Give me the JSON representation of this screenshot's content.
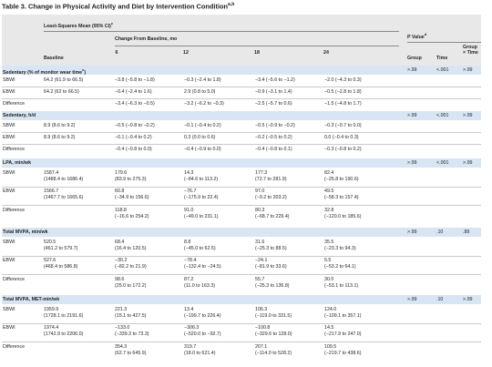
{
  "title": "Table 3. Change in Physical Activity and Diet by Intervention Condition",
  "title_sup": "a,b",
  "header": {
    "group_main": "Least-Squares Mean (95% CI)",
    "group_main_sup": "c",
    "group_sub": "Change From Baseline, mo",
    "pvalue": "P Value",
    "pvalue_sup": "d",
    "col_baseline": "Baseline",
    "col_6": "6",
    "col_12": "12",
    "col_18": "18",
    "col_24": "24",
    "col_group": "Group",
    "col_time": "Time",
    "col_gxt_1": "Group",
    "col_gxt_2": "× Time"
  },
  "sections": [
    {
      "title": "Sedentary (% of monitor wear time",
      "title_sup": "e",
      "title_tail": ")",
      "p": {
        "group": ">.99",
        "time": "<.001",
        "gxt": ">.99"
      },
      "rows": [
        {
          "label": "SBWI",
          "baseline": [
            "64.2 (61.9 to 66.5)"
          ],
          "m6": [
            "−3.8 (−5.8 to −1.8)"
          ],
          "m12": [
            "−0.3 (−2.4 to 1.8)"
          ],
          "m18": [
            "−3.4 (−5.6 to −1.2)"
          ],
          "m24": [
            "−2.0 (−4.3 to 0.3)"
          ]
        },
        {
          "label": "EBWI",
          "baseline": [
            "64.2 (62 to 66.5)"
          ],
          "m6": [
            "−0.4 (−2.4 to 1.6)"
          ],
          "m12": [
            "2.9 (0.8 to 5.0)"
          ],
          "m18": [
            "−0.9 (−3.1 to 1.4)"
          ],
          "m24": [
            "−0.5 (−2.8 to 1.8)"
          ]
        },
        {
          "label": "Difference",
          "baseline": [
            ""
          ],
          "m6": [
            "−3.4 (−6.3 to −0.5)"
          ],
          "m12": [
            "−3.2 (−6.2 to −0.3)"
          ],
          "m18": [
            "−2.5 (−5.7 to 0.6)"
          ],
          "m24": [
            "−1.5 (−4.8 to 1.7)"
          ]
        }
      ]
    },
    {
      "title": "Sedentary, h/d",
      "title_sup": "",
      "title_tail": "",
      "p": {
        "group": ">.99",
        "time": "<.001",
        "gxt": ">.99"
      },
      "rows": [
        {
          "label": "SBWI",
          "baseline": [
            "8.9 (8.6 to 9.2)"
          ],
          "m6": [
            "−0.5 (−0.8 to −0.2)"
          ],
          "m12": [
            "−0.1 (−0.4 to 0.2)"
          ],
          "m18": [
            "−0.5 (−0.9 to −0.2)"
          ],
          "m24": [
            "−0.3 (−0.7 to 0.0)"
          ]
        },
        {
          "label": "EBWI",
          "baseline": [
            "8.9 (8.6 to 9.2)"
          ],
          "m6": [
            "−0.1 (−0.4 to 0.2)"
          ],
          "m12": [
            "0.3 (0.0 to 0.6)"
          ],
          "m18": [
            "−0.2 (−0.5 to 0.2)"
          ],
          "m24": [
            "0.0 (−0.4 to 0.3)"
          ]
        },
        {
          "label": "Difference",
          "baseline": [
            ""
          ],
          "m6": [
            "−0.4 (−0.8 to 0.0)"
          ],
          "m12": [
            "−0.4 (−0.9 to 0.0)"
          ],
          "m18": [
            "−0.4 (−0.8 to 0.1)"
          ],
          "m24": [
            "−0.3 (−0.8 to 0.2)"
          ]
        }
      ]
    },
    {
      "title": "LPA, min/wk",
      "title_sup": "",
      "title_tail": "",
      "p": {
        "group": ">.99",
        "time": "<.001",
        "gxt": ">.99"
      },
      "rows": [
        {
          "label": "SBWI",
          "baseline": [
            "1587.4",
            "(1488.4 to 1686.4)"
          ],
          "m6": [
            "179.6",
            "(83.9 to 275.3)"
          ],
          "m12": [
            "14.3",
            "(−84.6 to 113.2)"
          ],
          "m18": [
            "177.3",
            "(72.7 to 281.9)"
          ],
          "m24": [
            "82.4",
            "(−25.8 to 190.6)"
          ]
        },
        {
          "label": "EBWI",
          "baseline": [
            "1566.7",
            "(1467.7 to 1665.6)"
          ],
          "m6": [
            "60.8",
            "(−34.9 to 156.6)"
          ],
          "m12": [
            "−76.7",
            "(−175.9 to 22.4)"
          ],
          "m18": [
            "97.0",
            "(−9.2 to 203.2)"
          ],
          "m24": [
            "49.5",
            "(−58.3 to 157.4)"
          ]
        },
        {
          "label": "Difference",
          "baseline": [
            "",
            ""
          ],
          "m6": [
            "118.8",
            "(−16.6 to 254.2)"
          ],
          "m12": [
            "91.0",
            "(−49.0 to 231.1)"
          ],
          "m18": [
            "80.3",
            "(−68.7 to 229.4)"
          ],
          "m24": [
            "32.8",
            "(−120.0 to 185.6)"
          ]
        }
      ]
    },
    {
      "title": "Total MVPA, min/wk",
      "title_sup": "",
      "title_tail": "",
      "p": {
        "group": ">.99",
        "time": ".10",
        "gxt": ".89"
      },
      "rows": [
        {
          "label": "SBWI",
          "baseline": [
            "520.5",
            "(461.2 to 579.7)"
          ],
          "m6": [
            "68.4",
            "(16.4 to 120.5)"
          ],
          "m12": [
            "8.8",
            "(−45.0 to 62.5)"
          ],
          "m18": [
            "31.6",
            "(−25.3 to 88.5)"
          ],
          "m24": [
            "35.5",
            "(−23.3 to 94.3)"
          ]
        },
        {
          "label": "EBWI",
          "baseline": [
            "527.6",
            "(468.4 to 586.8)"
          ],
          "m6": [
            "−30.2",
            "(−82.2 to 21.9)"
          ],
          "m12": [
            "−78.4",
            "(−132.4 to −24.5)"
          ],
          "m18": [
            "−24.1",
            "(−81.9 to 33.6)"
          ],
          "m24": [
            "5.5",
            "(−53.2 to 64.1)"
          ]
        },
        {
          "label": "Difference",
          "baseline": [
            "",
            ""
          ],
          "m6": [
            "98.6",
            "(25.0 to 172.2)"
          ],
          "m12": [
            "87.2",
            "(11.0 to 163.3)"
          ],
          "m18": [
            "55.7",
            "(−25.3 to 136.8)"
          ],
          "m24": [
            "30.0",
            "(−53.1 to 113.1)"
          ]
        }
      ]
    },
    {
      "title": "Total MVPA, MET-min/wk",
      "title_sup": "",
      "title_tail": "",
      "p": {
        "group": ">.99",
        "time": ".10",
        "gxt": ">.99"
      },
      "rows": [
        {
          "label": "SBWI",
          "baseline": [
            "1959.9",
            "(1728.1 to 2191.6)"
          ],
          "m6": [
            "221.3",
            "(15.1 to 427.5)"
          ],
          "m12": [
            "13.4",
            "(−199.7 to 226.4)"
          ],
          "m18": [
            "106.3",
            "(−119.0 to 331.5)"
          ],
          "m24": [
            "124.0",
            "(−109.1 to 357.1)"
          ]
        },
        {
          "label": "EBWI",
          "baseline": [
            "1974.4",
            "(1742.9 to 2206.0)"
          ],
          "m6": [
            "−133.0",
            "(−339.3 to 73.3)"
          ],
          "m12": [
            "−306.3",
            "(−520.0 to −92.7)"
          ],
          "m18": [
            "−100.8",
            "(−329.6 to 128.0)"
          ],
          "m24": [
            "14.5",
            "(−217.9 to 247.0)"
          ]
        },
        {
          "label": "Difference",
          "baseline": [
            "",
            ""
          ],
          "m6": [
            "354.3",
            "(62.7 to 645.9)"
          ],
          "m12": [
            "319.7",
            "(18.0 to 621.4)"
          ],
          "m18": [
            "207.1",
            "(−114.0 to 528.2)"
          ],
          "m24": [
            "109.5",
            "(−219.7 to 438.6)"
          ]
        }
      ]
    }
  ]
}
